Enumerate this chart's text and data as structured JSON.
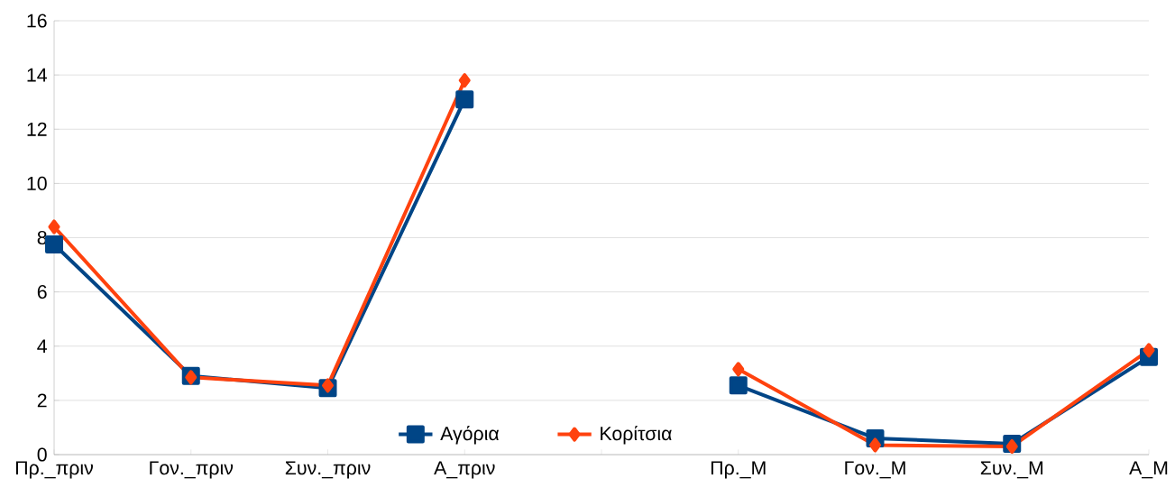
{
  "chart_data": {
    "type": "line",
    "categories": [
      "Πρ._πριν",
      "Γον._πριν",
      "Συν._πριν",
      "Α_πριν",
      null,
      "Πρ._Μ",
      "Γον._Μ",
      "Συν._Μ",
      "Α_Μ"
    ],
    "series": [
      {
        "name": "Αγόρια",
        "color": "#004586",
        "marker": "square",
        "values": [
          7.75,
          2.9,
          2.45,
          13.1,
          null,
          2.55,
          0.6,
          0.4,
          3.6
        ]
      },
      {
        "name": "Κορίτσια",
        "color": "#ff420e",
        "marker": "diamond",
        "values": [
          8.4,
          2.85,
          2.55,
          13.8,
          null,
          3.15,
          0.35,
          0.3,
          3.85
        ]
      }
    ],
    "ylim": [
      0,
      16
    ],
    "yticks": [
      0,
      2,
      4,
      6,
      8,
      10,
      12,
      14,
      16
    ],
    "grid": "y",
    "legend": "bottom",
    "line_style": "solid"
  }
}
